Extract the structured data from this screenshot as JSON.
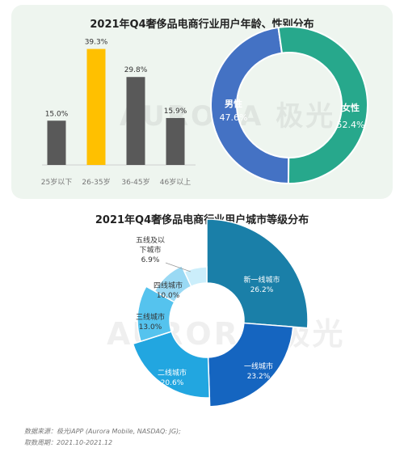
{
  "watermark": "AURORA 极光",
  "footer": {
    "source": "数据来源：极光iAPP (Aurora Mobile, NASDAQ: JG);",
    "period": "取数周期：2021.10-2021.12"
  },
  "colors": {
    "bar_default": "#595959",
    "bar_highlight": "#ffc000",
    "male": "#4472c4",
    "female": "#27a88c",
    "panel_bg": "#eef5ef",
    "city_tier1_new": "#1a7fa8",
    "city_tier1": "#1565c0",
    "city_tier2": "#22a6e0",
    "city_tier3": "#55c3ee",
    "city_tier4": "#9ad9f4",
    "city_tier5": "#cbeefb"
  },
  "chart_data": [
    {
      "type": "bar",
      "title": "2021年Q4奢侈品电商行业用户年龄、性别分布",
      "categories": [
        "25岁以下",
        "26-35岁",
        "36-45岁",
        "46岁以上"
      ],
      "values": [
        15.0,
        39.3,
        29.8,
        15.9
      ],
      "value_labels": [
        "15.0%",
        "39.3%",
        "29.8%",
        "15.9%"
      ],
      "highlight_index": 1,
      "ylim": [
        0,
        40
      ]
    },
    {
      "type": "pie",
      "donut": true,
      "labels": [
        "男性",
        "女性"
      ],
      "values": [
        47.6,
        52.4
      ],
      "value_labels": [
        "47.6%",
        "52.4%"
      ]
    },
    {
      "type": "pie",
      "donut": true,
      "variable_radius": true,
      "title": "2021年Q4奢侈品电商行业用户城市等级分布",
      "labels": [
        "新一线城市",
        "一线城市",
        "二线城市",
        "三线城市",
        "四线城市",
        "五线及以下城市"
      ],
      "label_lines": [
        [
          "新一线城市"
        ],
        [
          "一线城市"
        ],
        [
          "二线城市"
        ],
        [
          "三线城市"
        ],
        [
          "四线城市"
        ],
        [
          "五线及以",
          "下城市"
        ]
      ],
      "values": [
        26.2,
        23.2,
        20.6,
        13.0,
        10.0,
        6.9
      ],
      "value_labels": [
        "26.2%",
        "23.2%",
        "20.6%",
        "13.0%",
        "10.0%",
        "6.9%"
      ]
    }
  ]
}
